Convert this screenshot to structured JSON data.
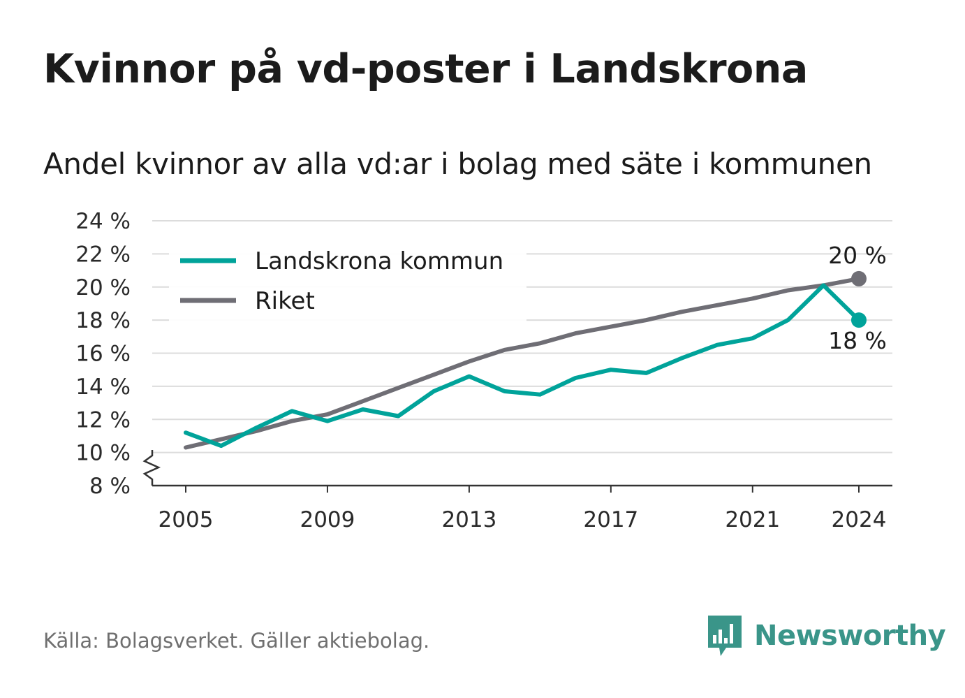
{
  "title": "Kvinnor på vd-poster i Landskrona",
  "subtitle": "Andel kvinnor av alla vd:ar i bolag med säte i kommunen",
  "source": "Källa: Bolagsverket. Gäller aktiebolag.",
  "brand": "Newsworthy",
  "colors": {
    "landskrona": "#00a39a",
    "riket": "#6f6e75",
    "grid": "#dcdcdc",
    "axis": "#333333",
    "brand": "#3a9589"
  },
  "chart_data": {
    "type": "line",
    "x": [
      2005,
      2006,
      2007,
      2008,
      2009,
      2010,
      2011,
      2012,
      2013,
      2014,
      2015,
      2016,
      2017,
      2018,
      2019,
      2020,
      2021,
      2022,
      2023,
      2024
    ],
    "x_ticks": [
      2005,
      2009,
      2013,
      2017,
      2021,
      2024
    ],
    "y_ticks": [
      8,
      10,
      12,
      14,
      16,
      18,
      20,
      22,
      24
    ],
    "y_tick_labels": [
      "8 %",
      "10 %",
      "12 %",
      "14 %",
      "16 %",
      "18 %",
      "20 %",
      "22 %",
      "24 %"
    ],
    "ylim": [
      8,
      24
    ],
    "y_axis_break": true,
    "grid": true,
    "legend_position": "top-left",
    "series": [
      {
        "name": "Landskrona kommun",
        "color": "#00a39a",
        "values": [
          11.2,
          10.4,
          11.5,
          12.5,
          11.9,
          12.6,
          12.2,
          13.7,
          14.6,
          13.7,
          13.5,
          14.5,
          15.0,
          14.8,
          15.7,
          16.5,
          16.9,
          18.0,
          20.1,
          18.0
        ],
        "end_label": "18 %"
      },
      {
        "name": "Riket",
        "color": "#6f6e75",
        "values": [
          10.3,
          10.8,
          11.3,
          11.9,
          12.3,
          13.1,
          13.9,
          14.7,
          15.5,
          16.2,
          16.6,
          17.2,
          17.6,
          18.0,
          18.5,
          18.9,
          19.3,
          19.8,
          20.1,
          20.5
        ],
        "end_label": "20 %"
      }
    ]
  }
}
